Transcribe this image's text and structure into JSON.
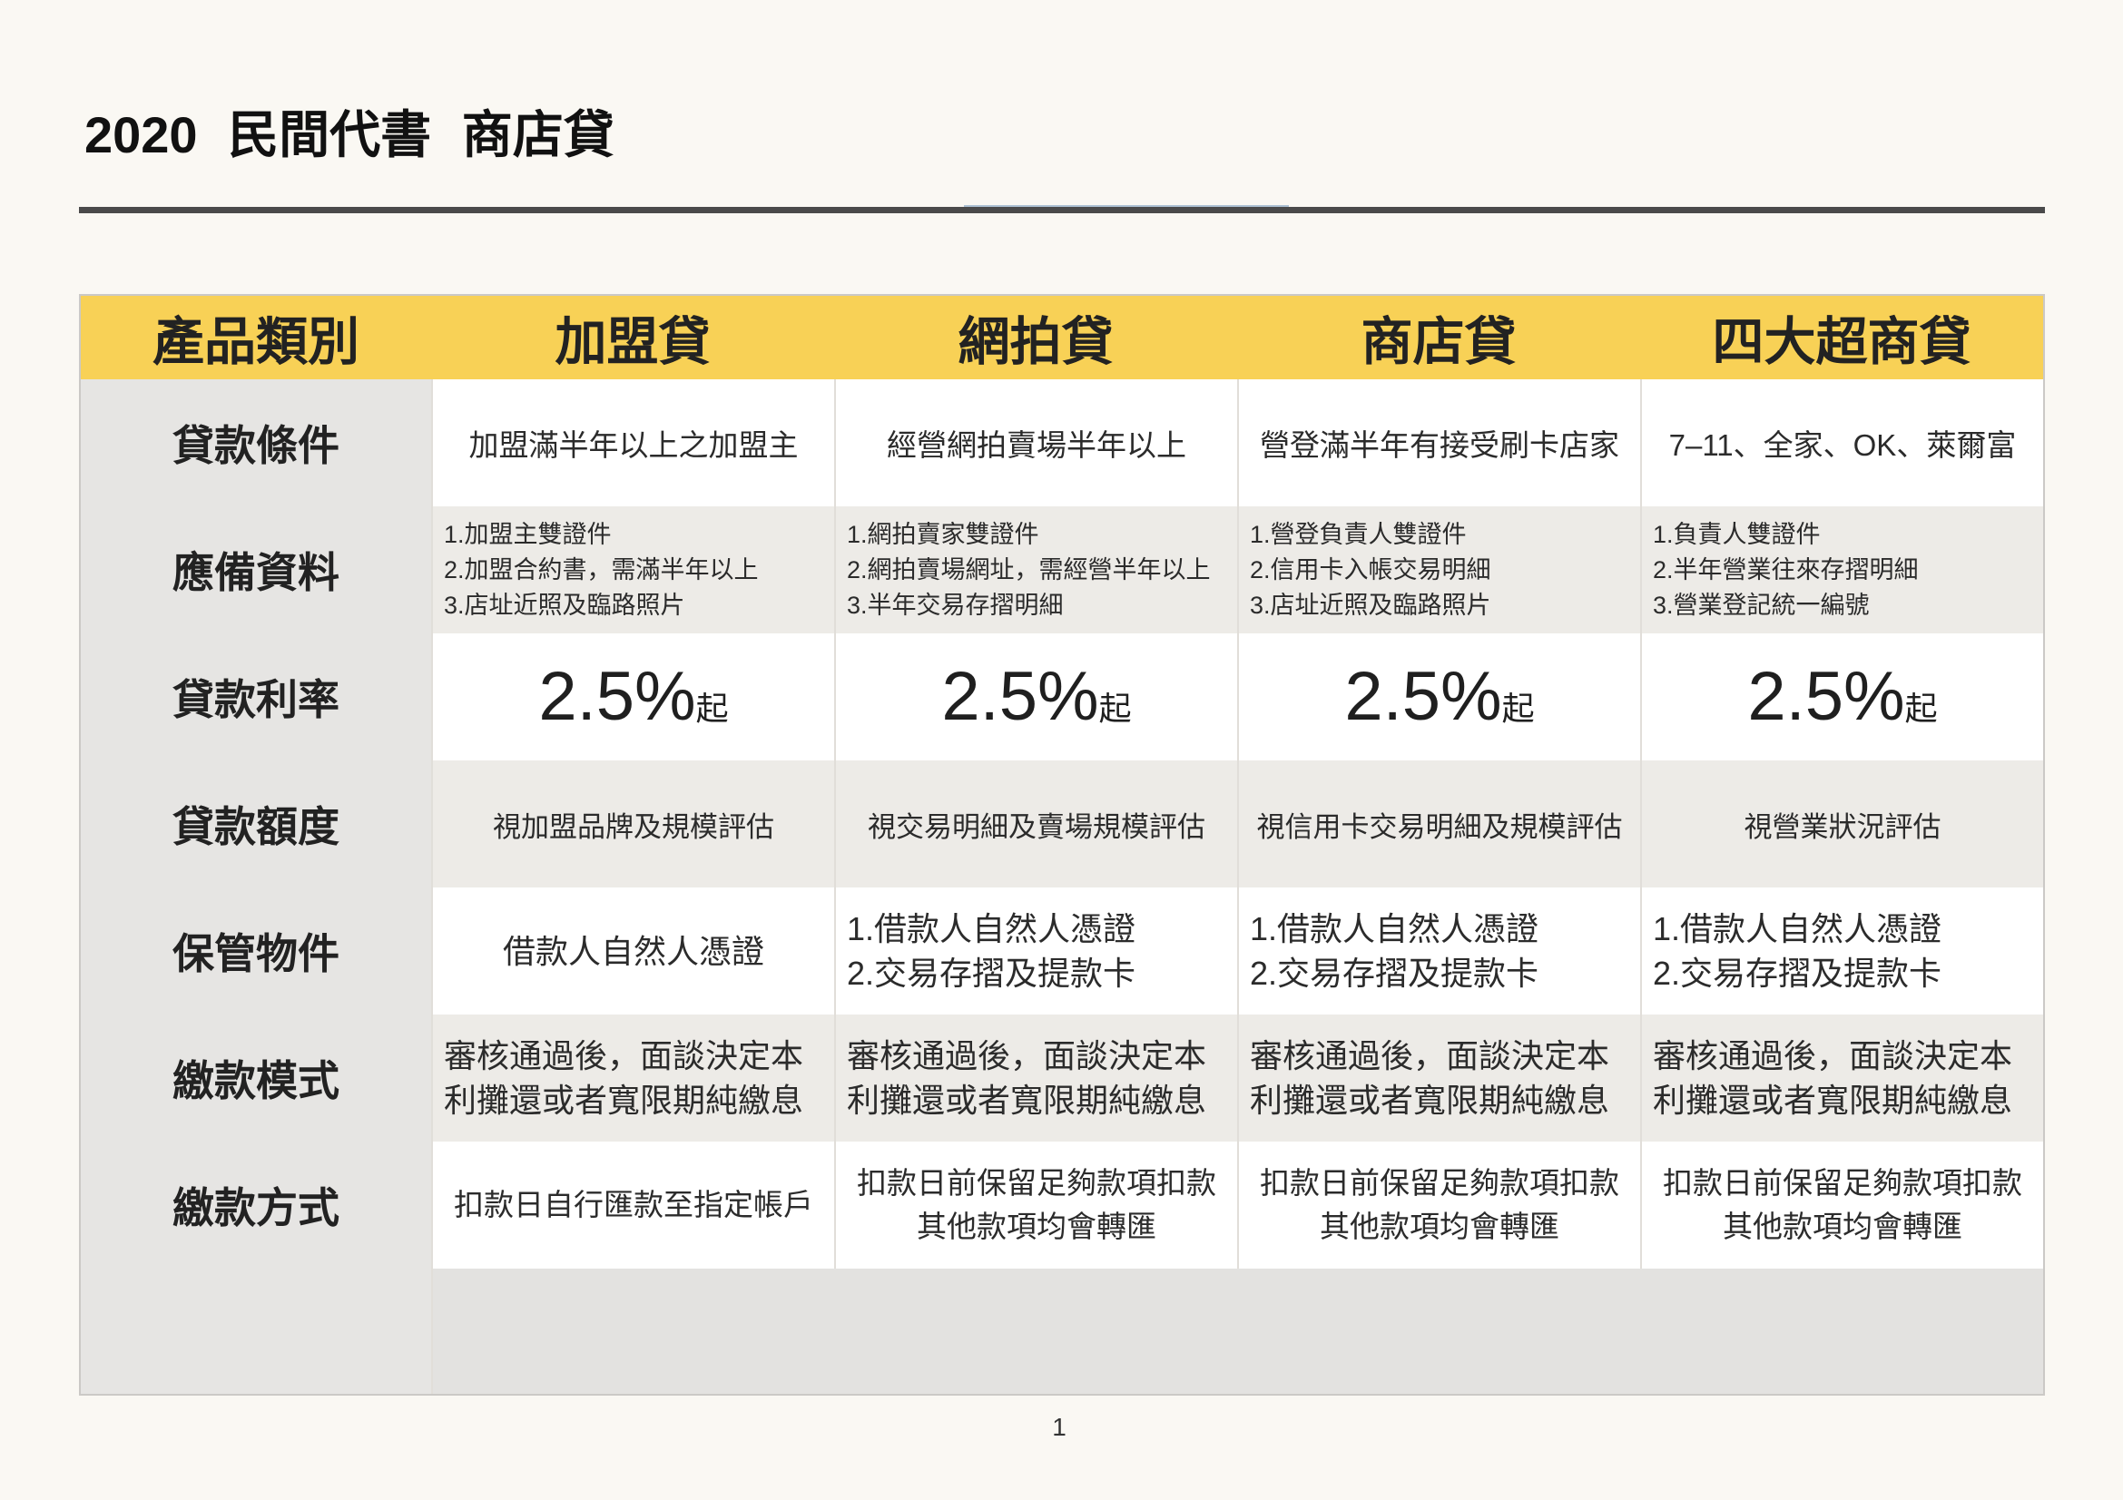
{
  "document": {
    "title": "2020 民間代書 商店貸",
    "page_number": "1"
  },
  "table": {
    "header": {
      "category_label": "產品類別",
      "products": [
        "加盟貸",
        "網拍貸",
        "商店貸",
        "四大超商貸"
      ]
    },
    "rows": [
      {
        "label": "貸款條件",
        "cells": [
          {
            "lines": [
              "加盟滿半年以上之加盟主"
            ]
          },
          {
            "lines": [
              "經營網拍賣場半年以上"
            ]
          },
          {
            "lines": [
              "營登滿半年有接受刷卡店家"
            ]
          },
          {
            "lines": [
              "7–11、全家、OK、萊爾富"
            ]
          }
        ]
      },
      {
        "label": "應備資料",
        "cells": [
          {
            "lines": [
              "1.加盟主雙證件",
              "2.加盟合約書，需滿半年以上",
              "3.店址近照及臨路照片"
            ]
          },
          {
            "lines": [
              "1.網拍賣家雙證件",
              "2.網拍賣場網址，需經營半年以上",
              "3.半年交易存摺明細"
            ]
          },
          {
            "lines": [
              "1.營登負責人雙證件",
              "2.信用卡入帳交易明細",
              "3.店址近照及臨路照片"
            ]
          },
          {
            "lines": [
              "1.負責人雙證件",
              "2.半年營業往來存摺明細",
              "3.營業登記統一編號"
            ]
          }
        ]
      },
      {
        "label": "貸款利率",
        "cells": [
          {
            "rate": "2.5%",
            "suffix": "起"
          },
          {
            "rate": "2.5%",
            "suffix": "起"
          },
          {
            "rate": "2.5%",
            "suffix": "起"
          },
          {
            "rate": "2.5%",
            "suffix": "起"
          }
        ]
      },
      {
        "label": "貸款額度",
        "cells": [
          {
            "lines": [
              "視加盟品牌及規模評估"
            ]
          },
          {
            "lines": [
              "視交易明細及賣場規模評估"
            ]
          },
          {
            "lines": [
              "視信用卡交易明細及規模評估"
            ]
          },
          {
            "lines": [
              "視營業狀況評估"
            ]
          }
        ]
      },
      {
        "label": "保管物件",
        "cells": [
          {
            "lines": [
              "借款人自然人憑證"
            ]
          },
          {
            "lines": [
              "1.借款人自然人憑證",
              "2.交易存摺及提款卡"
            ]
          },
          {
            "lines": [
              "1.借款人自然人憑證",
              "2.交易存摺及提款卡"
            ]
          },
          {
            "lines": [
              "1.借款人自然人憑證",
              "2.交易存摺及提款卡"
            ]
          }
        ]
      },
      {
        "label": "繳款模式",
        "cells": [
          {
            "lines": [
              "審核通過後，面談決定本",
              "利攤還或者寬限期純繳息"
            ]
          },
          {
            "lines": [
              "審核通過後，面談決定本",
              "利攤還或者寬限期純繳息"
            ]
          },
          {
            "lines": [
              "審核通過後，面談決定本",
              "利攤還或者寬限期純繳息"
            ]
          },
          {
            "lines": [
              "審核通過後，面談決定本",
              "利攤還或者寬限期純繳息"
            ]
          }
        ]
      },
      {
        "label": "繳款方式",
        "cells": [
          {
            "lines": [
              "扣款日自行匯款至指定帳戶"
            ]
          },
          {
            "lines": [
              "扣款日前保留足夠款項扣款",
              "其他款項均會轉匯"
            ]
          },
          {
            "lines": [
              "扣款日前保留足夠款項扣款",
              "其他款項均會轉匯"
            ]
          },
          {
            "lines": [
              "扣款日前保留足夠款項扣款",
              "其他款項均會轉匯"
            ]
          }
        ]
      }
    ]
  },
  "colors": {
    "page_background": "#FAF8F3",
    "header_background": "#F8D156",
    "label_column": "#E6E5E3",
    "row_white": "#FFFFFF",
    "row_gray": "#EDEBE7",
    "rule": "#4A4A4A",
    "text": "#2B2B2B"
  }
}
